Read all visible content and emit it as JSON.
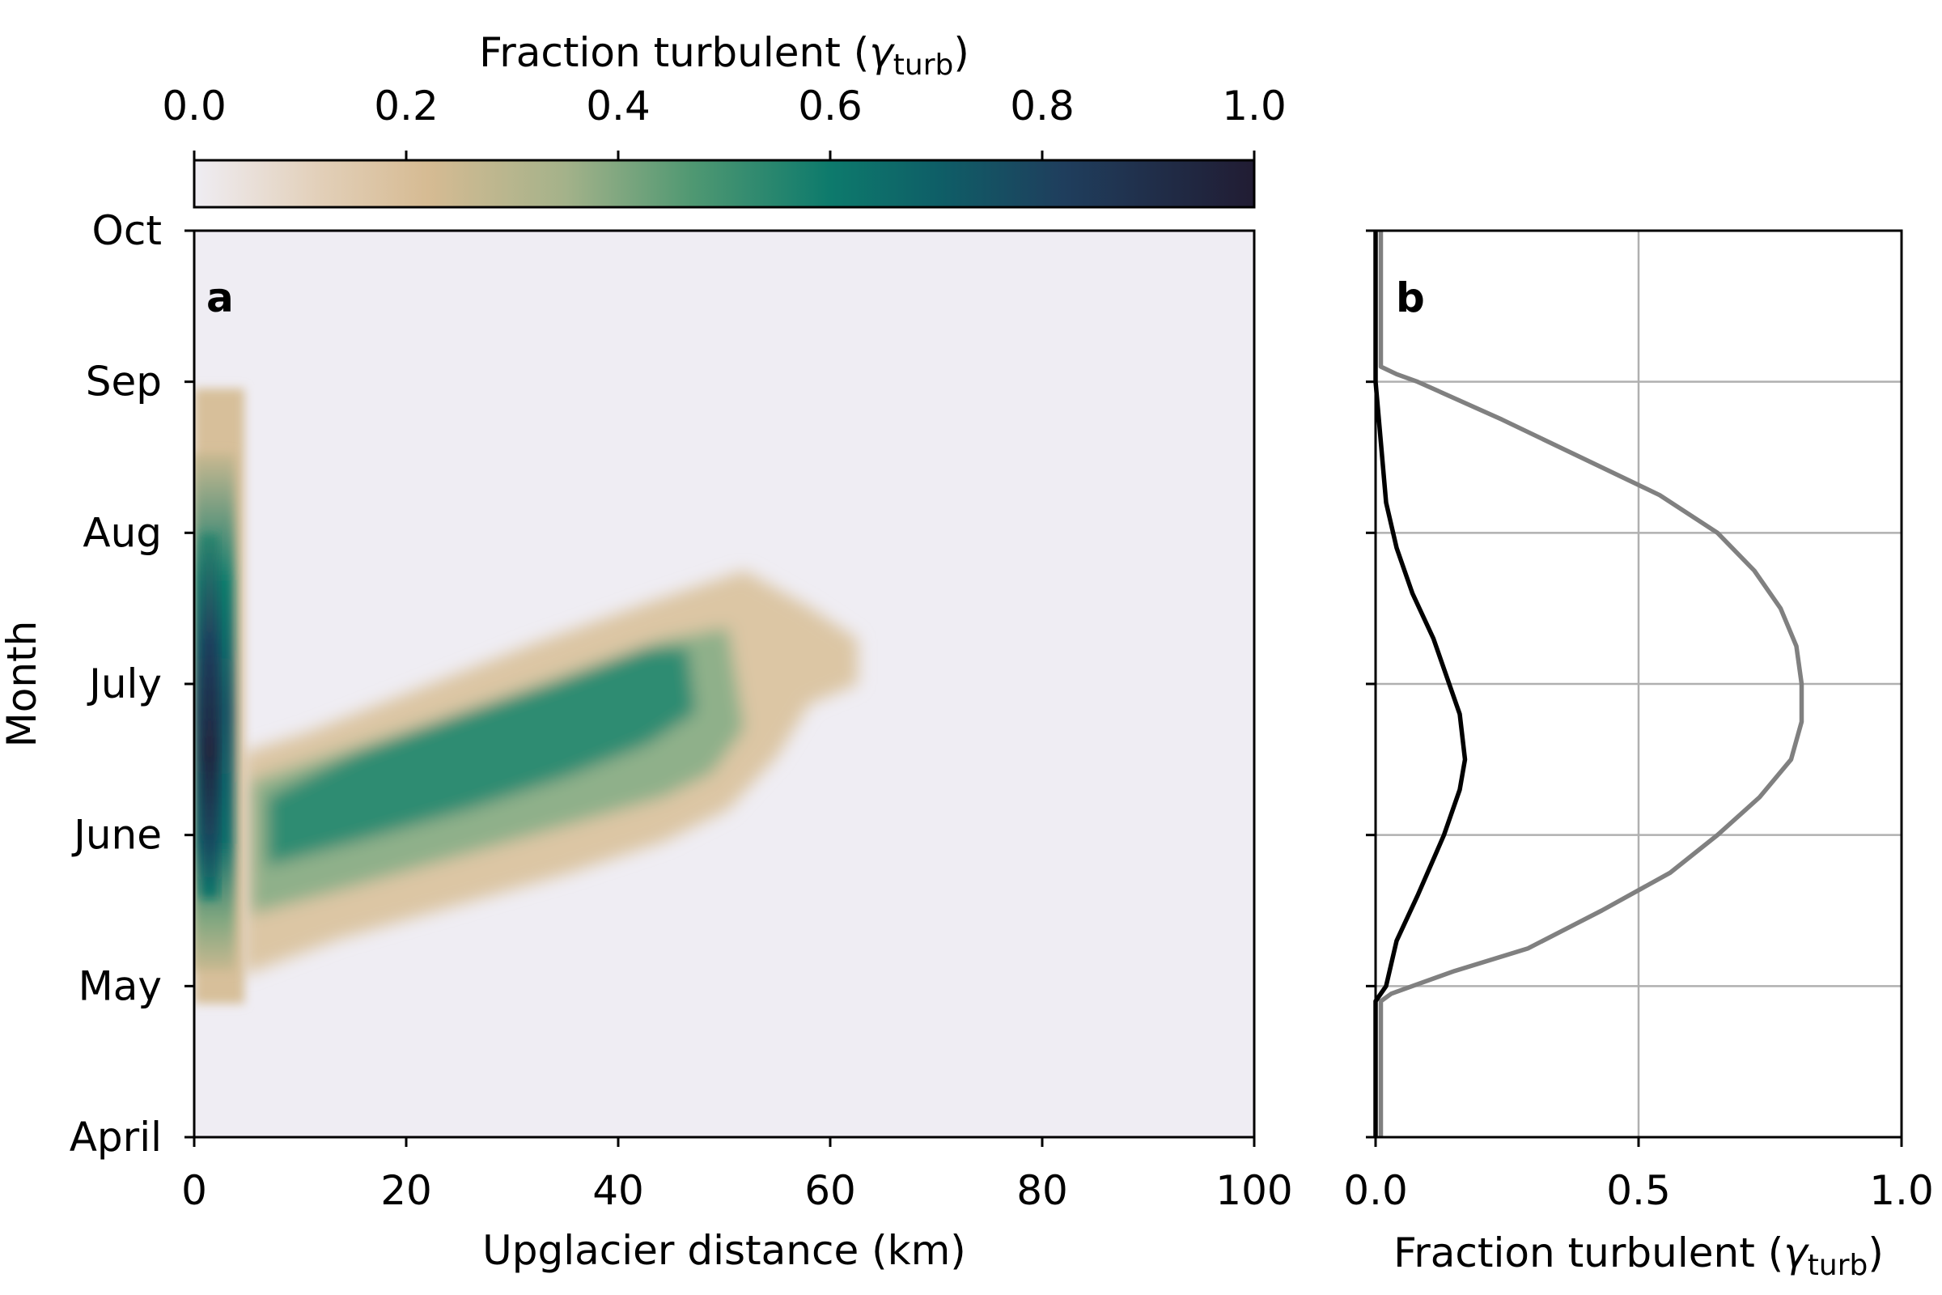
{
  "colorbar": {
    "label_main": "Fraction turbulent (",
    "label_sym": "γ",
    "label_sub": "turb",
    "label_close": ")",
    "ticks": [
      "0.0",
      "0.2",
      "0.4",
      "0.6",
      "0.8",
      "1.0"
    ],
    "range": [
      0,
      1
    ],
    "stops": [
      {
        "v": 0.0,
        "color": "#efedf3"
      },
      {
        "v": 0.12,
        "color": "#e2cfb8"
      },
      {
        "v": 0.22,
        "color": "#d6bb93"
      },
      {
        "v": 0.35,
        "color": "#a4b28a"
      },
      {
        "v": 0.47,
        "color": "#4f9872"
      },
      {
        "v": 0.6,
        "color": "#0d7a6c"
      },
      {
        "v": 0.7,
        "color": "#0e5f67"
      },
      {
        "v": 0.82,
        "color": "#1f3e5d"
      },
      {
        "v": 1.0,
        "color": "#211c33"
      }
    ]
  },
  "chart_data": [
    {
      "panel": "a",
      "type": "heatmap",
      "xlabel": "Upglacier distance (km)",
      "ylabel": "Month",
      "xlim": [
        0,
        100
      ],
      "ylim": [
        0,
        6
      ],
      "x_ticks": [
        "0",
        "20",
        "40",
        "60",
        "80",
        "100"
      ],
      "y_ticks": [
        "April",
        "May",
        "June",
        "July",
        "Aug",
        "Sep",
        "Oct"
      ],
      "colormap_range": [
        0,
        1
      ],
      "features": [
        {
          "x_range_km": [
            0,
            5
          ],
          "month_start": "May",
          "month_end": "Sep",
          "peak_value": 0.95
        },
        {
          "x_range_km": [
            5,
            63
          ],
          "month_start": "May",
          "month_end": "Aug",
          "peak_value": 0.55
        }
      ]
    },
    {
      "panel": "b",
      "type": "line",
      "xlabel_main": "Fraction turbulent (",
      "xlabel_sym": "γ",
      "xlabel_sub": "turb",
      "xlabel_close": ")",
      "xlim": [
        0,
        1
      ],
      "x_ticks": [
        "0.0",
        "0.5",
        "1.0"
      ],
      "grid": true,
      "series": [
        {
          "color": "#000000",
          "y_months": [
            0,
            0.9,
            1.0,
            1.3,
            1.6,
            2.0,
            2.3,
            2.5,
            2.8,
            3.0,
            3.3,
            3.6,
            3.9,
            4.2,
            4.6,
            5.0,
            5.5,
            6.0
          ],
          "values": [
            0.0,
            0.0,
            0.02,
            0.04,
            0.08,
            0.13,
            0.16,
            0.17,
            0.16,
            0.14,
            0.11,
            0.07,
            0.04,
            0.02,
            0.01,
            0.0,
            0.0,
            0.0
          ]
        },
        {
          "color": "#808080",
          "y_months": [
            0,
            0.9,
            0.95,
            1.0,
            1.1,
            1.25,
            1.5,
            1.75,
            2.0,
            2.25,
            2.5,
            2.75,
            3.0,
            3.25,
            3.5,
            3.75,
            4.0,
            4.25,
            4.5,
            4.75,
            5.0,
            5.05,
            5.1,
            6.0
          ],
          "values": [
            0.01,
            0.01,
            0.03,
            0.07,
            0.15,
            0.29,
            0.43,
            0.56,
            0.65,
            0.73,
            0.79,
            0.81,
            0.81,
            0.8,
            0.77,
            0.72,
            0.65,
            0.54,
            0.39,
            0.24,
            0.08,
            0.04,
            0.01,
            0.01
          ]
        }
      ]
    }
  ]
}
